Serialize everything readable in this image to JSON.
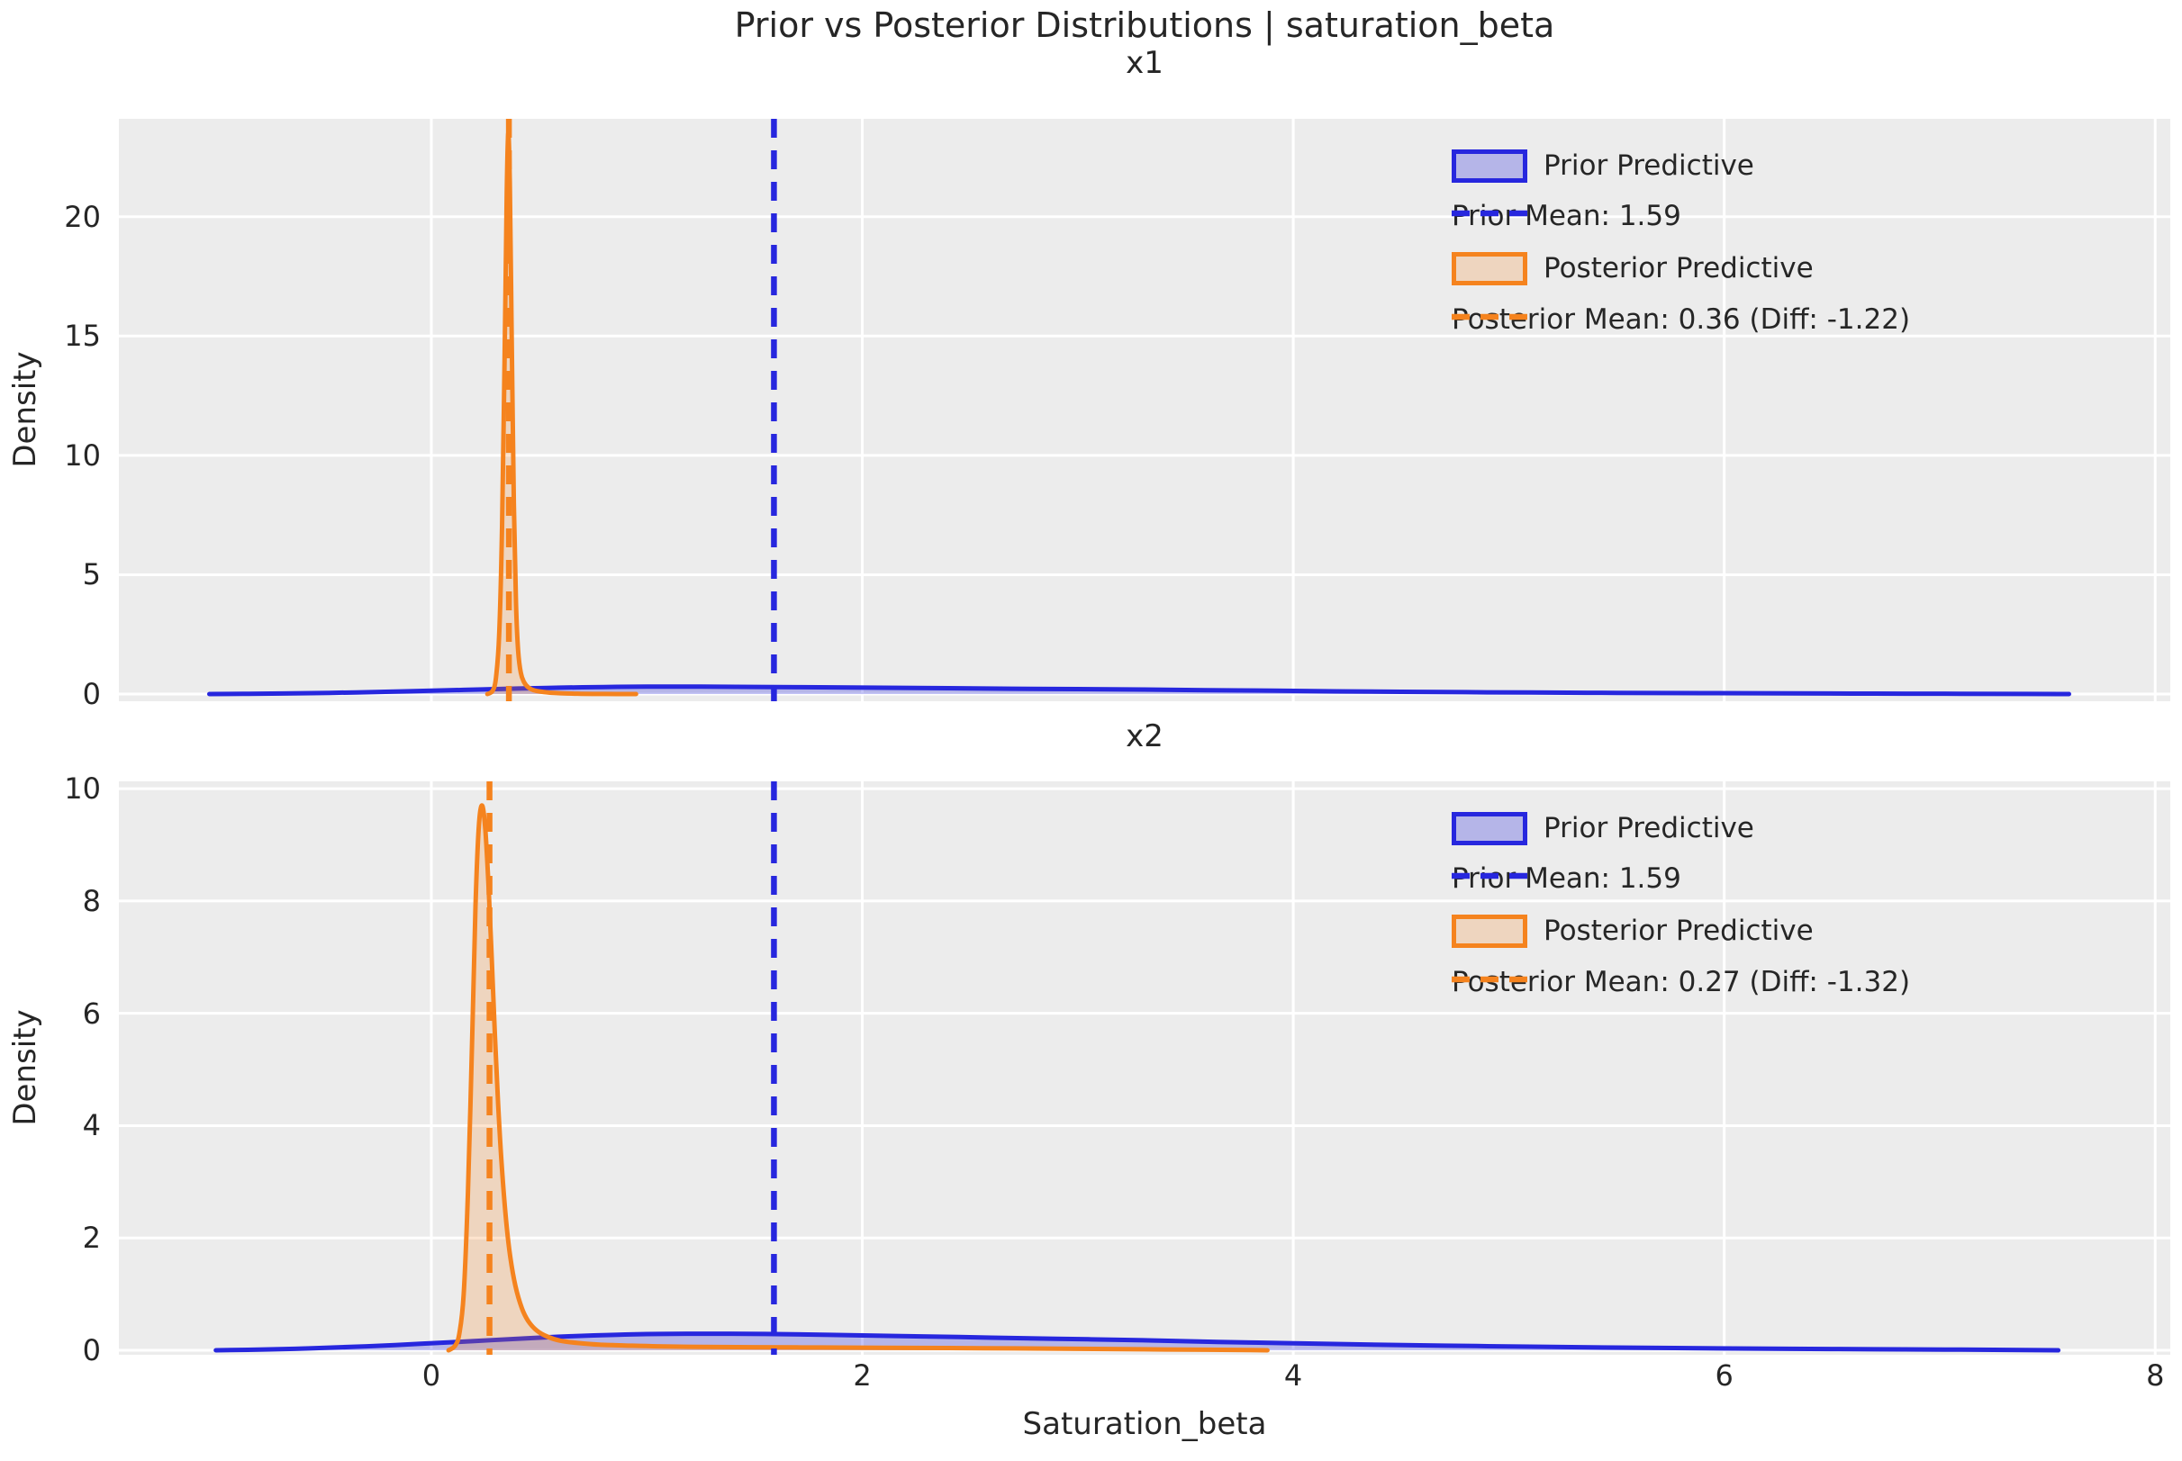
{
  "figure": {
    "title": "Prior vs Posterior Distributions | saturation_beta",
    "xlabel": "Saturation_beta",
    "colors": {
      "prior": "#2727de",
      "prior_fill": "rgba(39,39,222,0.28)",
      "posterior": "#f5831e",
      "posterior_fill": "rgba(245,131,30,0.22)",
      "axes_bg": "#ececec",
      "grid": "#ffffff",
      "text": "#262626"
    }
  },
  "chart_data": [
    {
      "type": "area",
      "title": "x1",
      "ylabel": "Density",
      "xlabel": "Saturation_beta",
      "xlim": [
        -1.45,
        8.07
      ],
      "ylim": [
        -0.3,
        24.1
      ],
      "xticks": [
        0,
        2,
        4,
        6,
        8
      ],
      "yticks": [
        0,
        5,
        10,
        15,
        20
      ],
      "grid": true,
      "legend_position": "upper right",
      "prior_mean": 1.59,
      "posterior_mean": 0.36,
      "diff": -1.22,
      "legend": [
        {
          "label": "Prior Predictive",
          "handle": "patch",
          "color_key": "prior"
        },
        {
          "label": "Prior Mean: 1.59",
          "handle": "dash",
          "color_key": "prior"
        },
        {
          "label": "Posterior Predictive",
          "handle": "patch",
          "color_key": "posterior"
        },
        {
          "label": "Posterior Mean: 0.36 (Diff: -1.22)",
          "handle": "dash",
          "color_key": "posterior"
        }
      ],
      "series": [
        {
          "name": "Prior Predictive",
          "kind": "kde",
          "color_key": "prior",
          "points": [
            [
              -1.03,
              0
            ],
            [
              -0.85,
              0.012
            ],
            [
              -0.6,
              0.035
            ],
            [
              -0.35,
              0.07
            ],
            [
              -0.1,
              0.12
            ],
            [
              0.15,
              0.175
            ],
            [
              0.4,
              0.23
            ],
            [
              0.6,
              0.27
            ],
            [
              0.8,
              0.295
            ],
            [
              1.0,
              0.31
            ],
            [
              1.25,
              0.31
            ],
            [
              1.5,
              0.3
            ],
            [
              1.8,
              0.285
            ],
            [
              2.1,
              0.265
            ],
            [
              2.4,
              0.245
            ],
            [
              2.7,
              0.225
            ],
            [
              3.0,
              0.21
            ],
            [
              3.3,
              0.19
            ],
            [
              3.6,
              0.165
            ],
            [
              3.9,
              0.14
            ],
            [
              4.2,
              0.115
            ],
            [
              4.5,
              0.095
            ],
            [
              4.8,
              0.08
            ],
            [
              5.1,
              0.065
            ],
            [
              5.5,
              0.05
            ],
            [
              5.9,
              0.038
            ],
            [
              6.3,
              0.028
            ],
            [
              6.7,
              0.02
            ],
            [
              7.1,
              0.012
            ],
            [
              7.4,
              0.006
            ],
            [
              7.6,
              0
            ]
          ]
        },
        {
          "name": "Posterior Predictive",
          "kind": "kde",
          "color_key": "posterior",
          "points": [
            [
              0.26,
              0
            ],
            [
              0.285,
              0.15
            ],
            [
              0.3,
              0.7
            ],
            [
              0.315,
              2.5
            ],
            [
              0.328,
              7
            ],
            [
              0.34,
              14
            ],
            [
              0.35,
              21
            ],
            [
              0.357,
              23.5
            ],
            [
              0.364,
              21.5
            ],
            [
              0.373,
              15
            ],
            [
              0.383,
              8
            ],
            [
              0.393,
              3.8
            ],
            [
              0.403,
              1.8
            ],
            [
              0.415,
              0.9
            ],
            [
              0.43,
              0.5
            ],
            [
              0.45,
              0.28
            ],
            [
              0.475,
              0.16
            ],
            [
              0.51,
              0.1
            ],
            [
              0.55,
              0.06
            ],
            [
              0.6,
              0.035
            ],
            [
              0.68,
              0.015
            ],
            [
              0.8,
              0.005
            ],
            [
              0.95,
              0
            ]
          ]
        },
        {
          "name": "Prior Mean",
          "kind": "vline",
          "color_key": "prior",
          "x": 1.59
        },
        {
          "name": "Posterior Mean",
          "kind": "vline",
          "color_key": "posterior",
          "x": 0.36
        }
      ]
    },
    {
      "type": "area",
      "title": "x2",
      "ylabel": "Density",
      "xlabel": "Saturation_beta",
      "xlim": [
        -1.45,
        8.07
      ],
      "ylim": [
        -0.08,
        10.13
      ],
      "xticks": [
        0,
        2,
        4,
        6,
        8
      ],
      "yticks": [
        0,
        2,
        4,
        6,
        8,
        10
      ],
      "grid": true,
      "legend_position": "upper right",
      "prior_mean": 1.59,
      "posterior_mean": 0.27,
      "diff": -1.32,
      "legend": [
        {
          "label": "Prior Predictive",
          "handle": "patch",
          "color_key": "prior"
        },
        {
          "label": "Prior Mean: 1.59",
          "handle": "dash",
          "color_key": "prior"
        },
        {
          "label": "Posterior Predictive",
          "handle": "patch",
          "color_key": "posterior"
        },
        {
          "label": "Posterior Mean: 0.27 (Diff: -1.32)",
          "handle": "dash",
          "color_key": "posterior"
        }
      ],
      "series": [
        {
          "name": "Prior Predictive",
          "kind": "kde",
          "color_key": "prior",
          "points": [
            [
              -1.0,
              0
            ],
            [
              -0.8,
              0.012
            ],
            [
              -0.55,
              0.035
            ],
            [
              -0.3,
              0.07
            ],
            [
              -0.05,
              0.115
            ],
            [
              0.2,
              0.165
            ],
            [
              0.45,
              0.215
            ],
            [
              0.65,
              0.25
            ],
            [
              0.85,
              0.275
            ],
            [
              1.05,
              0.29
            ],
            [
              1.3,
              0.295
            ],
            [
              1.55,
              0.29
            ],
            [
              1.85,
              0.275
            ],
            [
              2.15,
              0.255
            ],
            [
              2.45,
              0.235
            ],
            [
              2.75,
              0.215
            ],
            [
              3.05,
              0.195
            ],
            [
              3.35,
              0.175
            ],
            [
              3.65,
              0.15
            ],
            [
              3.95,
              0.128
            ],
            [
              4.25,
              0.108
            ],
            [
              4.55,
              0.09
            ],
            [
              4.85,
              0.075
            ],
            [
              5.15,
              0.062
            ],
            [
              5.5,
              0.048
            ],
            [
              5.9,
              0.036
            ],
            [
              6.3,
              0.026
            ],
            [
              6.7,
              0.018
            ],
            [
              7.1,
              0.011
            ],
            [
              7.4,
              0.005
            ],
            [
              7.55,
              0
            ]
          ]
        },
        {
          "name": "Posterior Predictive",
          "kind": "kde",
          "color_key": "posterior",
          "points": [
            [
              0.08,
              0
            ],
            [
              0.11,
              0.08
            ],
            [
              0.13,
              0.3
            ],
            [
              0.15,
              1.0
            ],
            [
              0.17,
              2.8
            ],
            [
              0.19,
              5.6
            ],
            [
              0.205,
              7.9
            ],
            [
              0.22,
              9.3
            ],
            [
              0.235,
              9.7
            ],
            [
              0.25,
              9.3
            ],
            [
              0.265,
              8.3
            ],
            [
              0.28,
              7.0
            ],
            [
              0.295,
              5.6
            ],
            [
              0.31,
              4.4
            ],
            [
              0.325,
              3.4
            ],
            [
              0.345,
              2.4
            ],
            [
              0.365,
              1.7
            ],
            [
              0.39,
              1.15
            ],
            [
              0.42,
              0.75
            ],
            [
              0.45,
              0.52
            ],
            [
              0.49,
              0.35
            ],
            [
              0.54,
              0.24
            ],
            [
              0.6,
              0.17
            ],
            [
              0.68,
              0.13
            ],
            [
              0.78,
              0.1
            ],
            [
              0.9,
              0.085
            ],
            [
              1.05,
              0.07
            ],
            [
              1.25,
              0.06
            ],
            [
              1.5,
              0.055
            ],
            [
              1.8,
              0.05
            ],
            [
              2.1,
              0.045
            ],
            [
              2.4,
              0.04
            ],
            [
              2.7,
              0.033
            ],
            [
              3.0,
              0.026
            ],
            [
              3.3,
              0.018
            ],
            [
              3.6,
              0.01
            ],
            [
              3.8,
              0.004
            ],
            [
              3.88,
              0
            ]
          ]
        },
        {
          "name": "Prior Mean",
          "kind": "vline",
          "color_key": "prior",
          "x": 1.59
        },
        {
          "name": "Posterior Mean",
          "kind": "vline",
          "color_key": "posterior",
          "x": 0.27
        }
      ]
    }
  ]
}
